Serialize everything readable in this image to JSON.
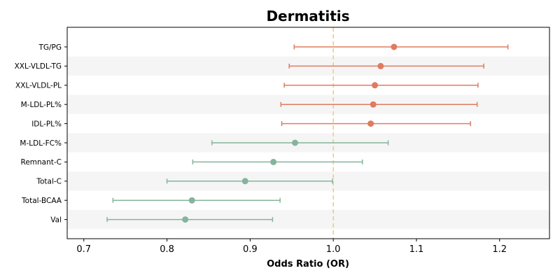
{
  "chart_data": {
    "type": "forest",
    "title": "Dermatitis",
    "xlabel": "Odds Ratio (OR)",
    "ylabel": "",
    "xlim": [
      0.68,
      1.26
    ],
    "xticks": [
      "0.7",
      "0.8",
      "0.9",
      "1.0",
      "1.1",
      "1.2"
    ],
    "reference_line": 1.0,
    "grid": false,
    "colors": {
      "increase": "#e07b5f",
      "decrease": "#84b59c",
      "reference": "#f5c77e",
      "stripe": "#f5f5f5"
    },
    "categories": [
      "TG/PG",
      "XXL-VLDL-TG",
      "XXL-VLDL-PL",
      "M-LDL-PL%",
      "IDL-PL%",
      "M-LDL-FC%",
      "Remnant-C",
      "Total-C",
      "Total-BCAA",
      "Val"
    ],
    "or": [
      1.073,
      1.057,
      1.05,
      1.048,
      1.045,
      0.954,
      0.928,
      0.894,
      0.83,
      0.822
    ],
    "lower": [
      0.953,
      0.947,
      0.941,
      0.937,
      0.938,
      0.854,
      0.831,
      0.8,
      0.735,
      0.728
    ],
    "upper": [
      1.21,
      1.181,
      1.174,
      1.173,
      1.165,
      1.066,
      1.035,
      0.999,
      0.936,
      0.927
    ]
  }
}
